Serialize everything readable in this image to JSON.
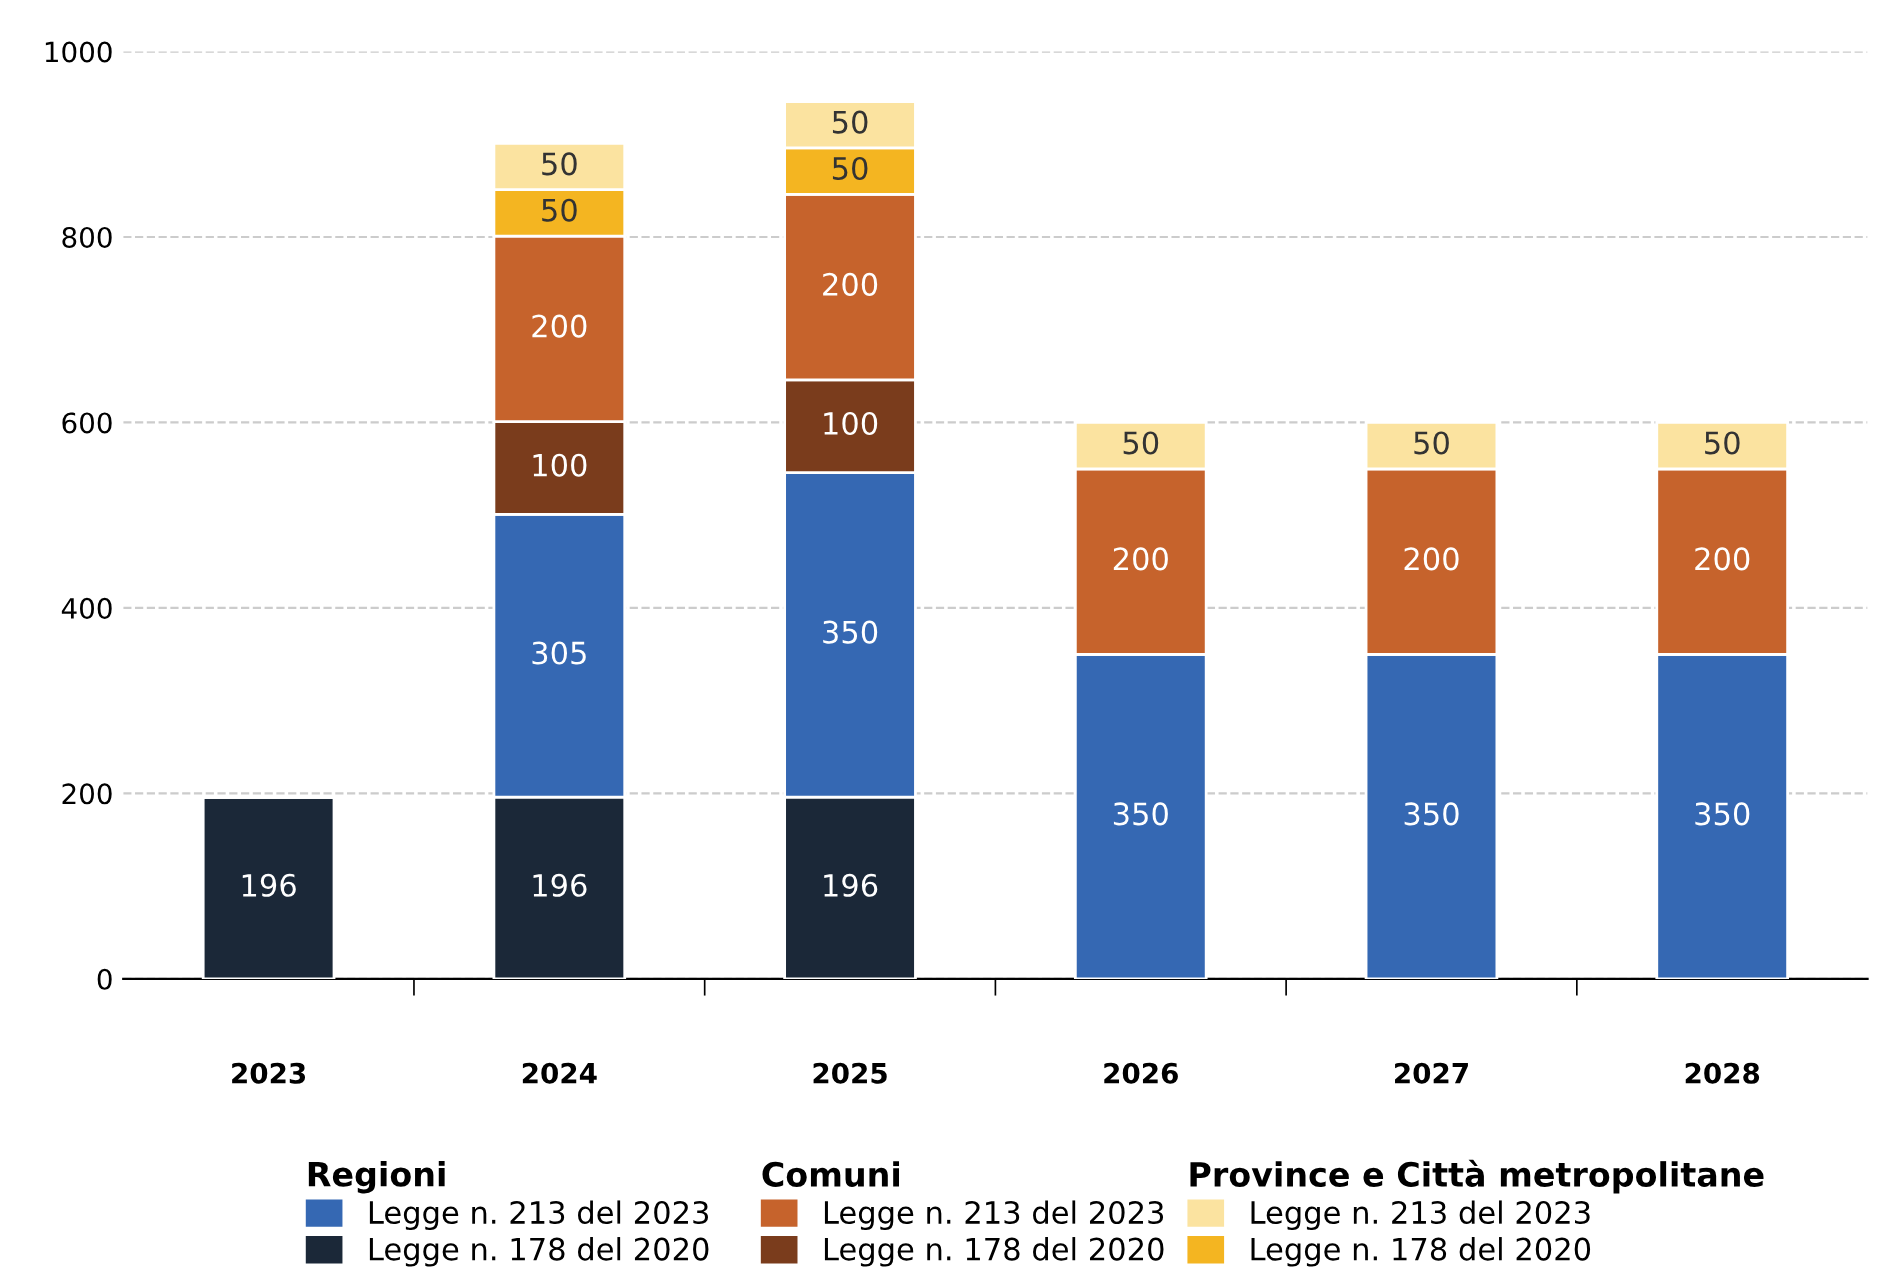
{
  "chart_data": {
    "type": "bar",
    "stacked": true,
    "categories": [
      "2023",
      "2024",
      "2025",
      "2026",
      "2027",
      "2028"
    ],
    "series": [
      {
        "name": "Legge n. 178 del 2020",
        "color": "#1b2838",
        "values": [
          196,
          196,
          196,
          null,
          null,
          null
        ]
      },
      {
        "name": "Legge n. 213 del 2023",
        "color": "#3568b3",
        "values": [
          null,
          305,
          350,
          350,
          350,
          350
        ]
      },
      {
        "name": "Legge n. 178 del 2020",
        "color": "#7a3c1c",
        "values": [
          null,
          100,
          100,
          null,
          null,
          null
        ]
      },
      {
        "name": "Legge n. 213 del 2023",
        "color": "#c6632c",
        "values": [
          null,
          200,
          200,
          200,
          200,
          200
        ]
      },
      {
        "name": "Legge n. 178 del 2020",
        "color": "#f4b521",
        "values": [
          null,
          50,
          50,
          null,
          null,
          null
        ]
      },
      {
        "name": "Legge n. 213 del 2023",
        "color": "#fbe3a0",
        "values": [
          null,
          50,
          50,
          50,
          50,
          50
        ]
      }
    ],
    "annotations": [
      "Regioni",
      "Comuni",
      "Province e Città metropolitane"
    ],
    "ylim": [
      0,
      1000
    ],
    "yticks": [
      0,
      200,
      400,
      600,
      800,
      1000
    ],
    "grid": "y",
    "data_labels": true,
    "legend": "bottom"
  }
}
